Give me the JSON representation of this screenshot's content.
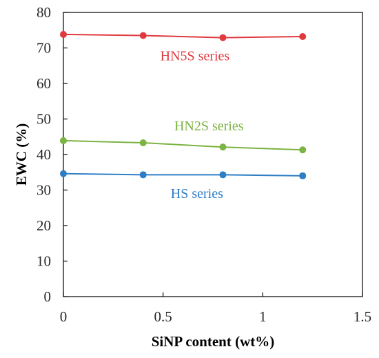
{
  "chart_data": {
    "type": "line",
    "title": "",
    "xlabel": "SiNP content (wt%)",
    "ylabel": "EWC (%)",
    "xlim": [
      0,
      1.5
    ],
    "ylim": [
      0,
      80
    ],
    "xticks": [
      0,
      0.5,
      1,
      1.5
    ],
    "yticks": [
      0,
      10,
      20,
      30,
      40,
      50,
      60,
      70,
      80
    ],
    "xtick_labels": [
      "0",
      "0.5",
      "1",
      "1.5"
    ],
    "ytick_labels": [
      "0",
      "10",
      "20",
      "30",
      "40",
      "50",
      "60",
      "70",
      "80"
    ],
    "grid": false,
    "legend": "none (series labeled inline)",
    "x": [
      0,
      0.4,
      0.8,
      1.2
    ],
    "series": [
      {
        "name": "HN5S series",
        "color": "#e0393e",
        "values": [
          73.8,
          73.5,
          72.9,
          73.2
        ],
        "errors": [
          0.3,
          0.3,
          0.3,
          0.5
        ],
        "label_x": 0.66,
        "label_y": 66.5
      },
      {
        "name": "HN2S series",
        "color": "#7cb342",
        "values": [
          43.9,
          43.3,
          42.1,
          41.3
        ],
        "errors": [
          0.3,
          0.3,
          0.3,
          0.3
        ],
        "label_x": 0.73,
        "label_y": 46.8
      },
      {
        "name": "HS series",
        "color": "#2e7ec6",
        "values": [
          34.6,
          34.3,
          34.3,
          34.0
        ],
        "errors": [
          0.3,
          0.6,
          0.6,
          0.6
        ],
        "label_x": 0.67,
        "label_y": 27.8
      }
    ]
  }
}
